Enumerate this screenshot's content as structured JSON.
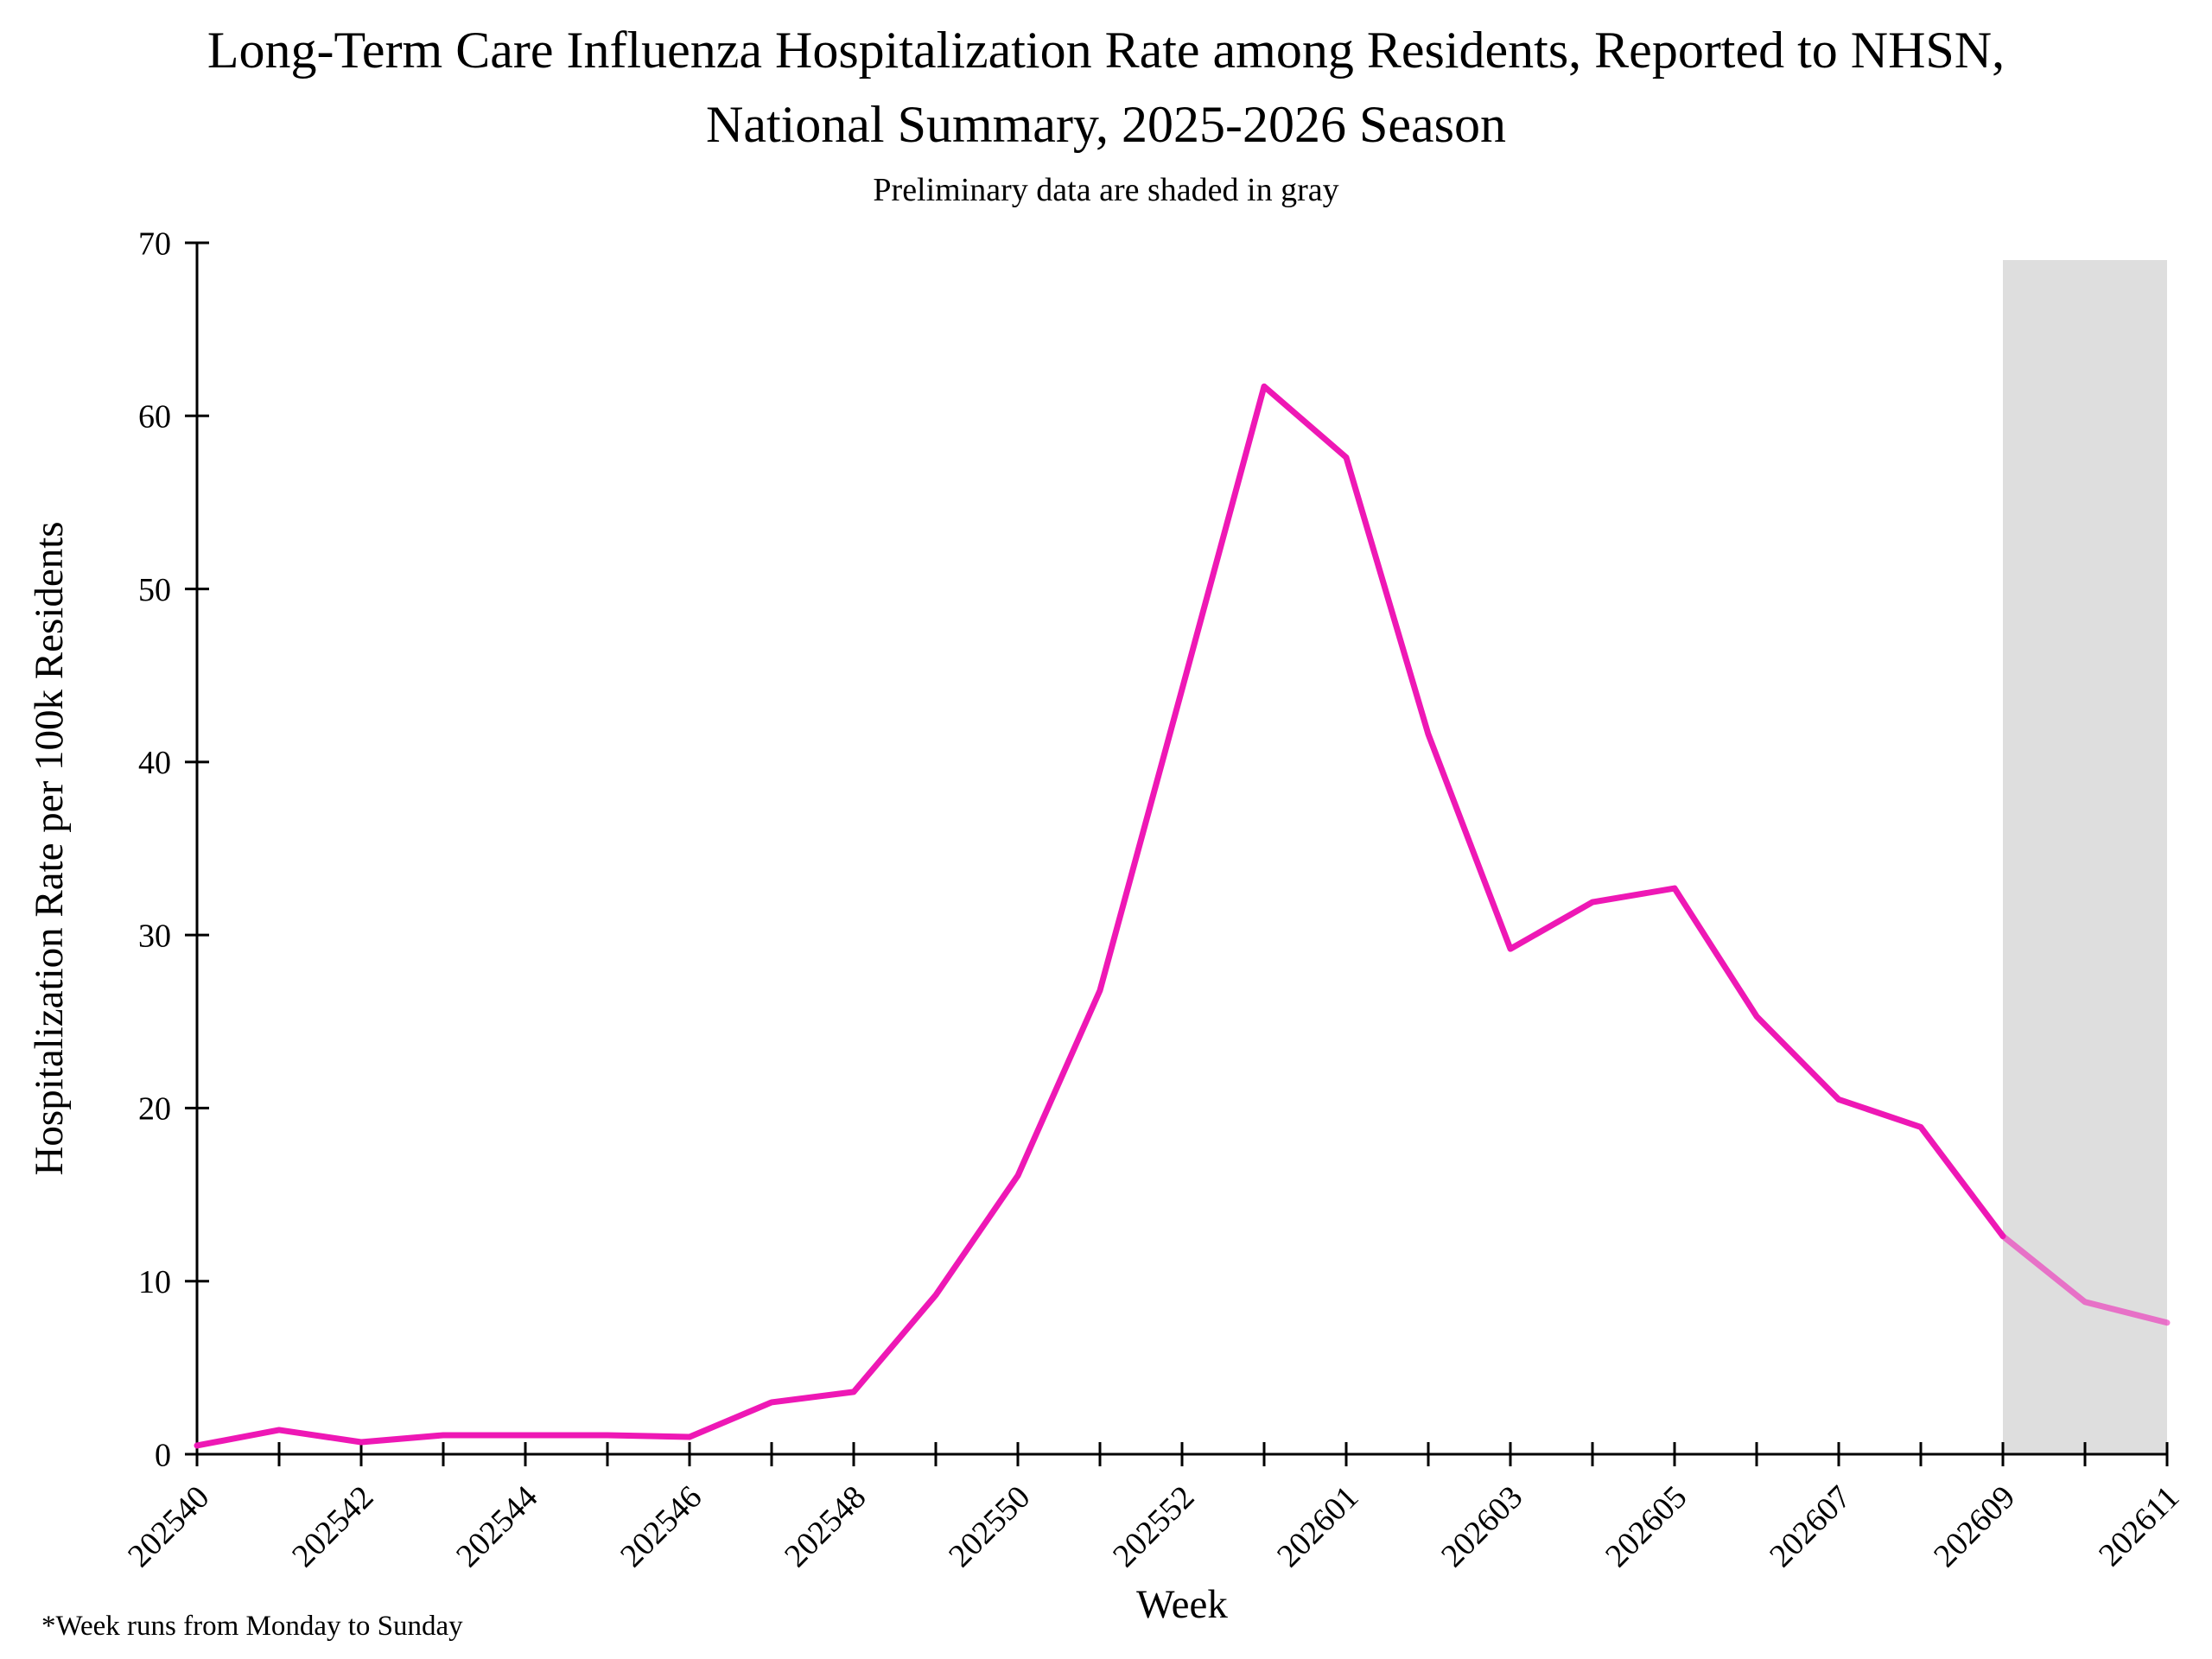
{
  "title": {
    "line1": "Long-Term Care Influenza Hospitalization Rate among Residents, Reported to NHSN,",
    "line2": "National Summary, 2025-2026 Season"
  },
  "subtitle": "Preliminary data are shaded in gray",
  "footnote": "*Week runs from Monday to Sunday",
  "chart_data": {
    "type": "line",
    "x": [
      "202540",
      "202541",
      "202542",
      "202543",
      "202544",
      "202545",
      "202546",
      "202547",
      "202548",
      "202549",
      "202550",
      "202551",
      "202552",
      "202553",
      "202601",
      "202602",
      "202603",
      "202604",
      "202605",
      "202606",
      "202607",
      "202608",
      "202609",
      "202610",
      "202611"
    ],
    "series": [
      {
        "name": "LTC influenza hospitalization rate per 100k residents",
        "values": [
          0.5,
          1.4,
          0.7,
          1.1,
          1.1,
          1.1,
          1.0,
          3.0,
          3.6,
          9.2,
          16.1,
          26.8,
          44.2,
          61.7,
          57.6,
          41.6,
          29.2,
          31.9,
          32.7,
          25.3,
          20.5,
          18.9,
          12.6,
          8.8,
          7.6
        ]
      }
    ],
    "xlabel": "Week",
    "ylabel": "Hospitalization Rate per 100k Residents",
    "ylim": [
      0,
      70
    ],
    "yticks": [
      0,
      10,
      20,
      30,
      40,
      50,
      60,
      70
    ],
    "xtick_label_every": 2,
    "xtick_rotation_deg": -45,
    "grid": false,
    "legend": "none",
    "preliminary": {
      "note": "Preliminary data are shaded in gray",
      "start_week": "202609",
      "end_week": "202611",
      "start_index": 22,
      "band_top_value": 69
    },
    "colors": {
      "line": "#EE18B5",
      "preliminary_line": "rgba(238,24,181,0.55)",
      "preliminary_band": "#DEDEDE",
      "axis": "#000000",
      "text": "#000000"
    }
  }
}
